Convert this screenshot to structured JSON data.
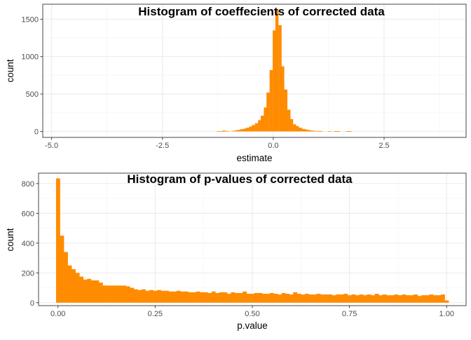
{
  "chart_data": [
    {
      "type": "bar",
      "title": "Histogram of coeffecients of corrected data",
      "xlabel": "estimate",
      "ylabel": "count",
      "xlim": [
        -5.2,
        4.35
      ],
      "ylim": [
        -80,
        1700
      ],
      "x_ticks": [
        -5.0,
        -2.5,
        0.0,
        2.5
      ],
      "x_tick_labels": [
        "-5.0",
        "-2.5",
        "0.0",
        "2.5"
      ],
      "y_ticks": [
        0,
        500,
        1000,
        1500
      ],
      "y_tick_labels": [
        "0",
        "500",
        "1000",
        "1500"
      ],
      "grid": true,
      "bin_width": 0.066,
      "bar_color": "#ff8c00",
      "bins": [
        {
          "x": -1.24,
          "count": 3
        },
        {
          "x": -1.17,
          "count": 5
        },
        {
          "x": -1.11,
          "count": 12
        },
        {
          "x": -1.04,
          "count": 6
        },
        {
          "x": -0.91,
          "count": 8
        },
        {
          "x": -0.84,
          "count": 14
        },
        {
          "x": -0.78,
          "count": 20
        },
        {
          "x": -0.71,
          "count": 30
        },
        {
          "x": -0.64,
          "count": 38
        },
        {
          "x": -0.58,
          "count": 50
        },
        {
          "x": -0.51,
          "count": 65
        },
        {
          "x": -0.45,
          "count": 85
        },
        {
          "x": -0.38,
          "count": 110
        },
        {
          "x": -0.31,
          "count": 150
        },
        {
          "x": -0.25,
          "count": 210
        },
        {
          "x": -0.18,
          "count": 320
        },
        {
          "x": -0.12,
          "count": 520
        },
        {
          "x": -0.05,
          "count": 820
        },
        {
          "x": 0.02,
          "count": 1350
        },
        {
          "x": 0.08,
          "count": 1630
        },
        {
          "x": 0.15,
          "count": 1420
        },
        {
          "x": 0.21,
          "count": 870
        },
        {
          "x": 0.28,
          "count": 560
        },
        {
          "x": 0.35,
          "count": 290
        },
        {
          "x": 0.41,
          "count": 165
        },
        {
          "x": 0.48,
          "count": 95
        },
        {
          "x": 0.54,
          "count": 70
        },
        {
          "x": 0.61,
          "count": 50
        },
        {
          "x": 0.68,
          "count": 34
        },
        {
          "x": 0.74,
          "count": 26
        },
        {
          "x": 0.81,
          "count": 18
        },
        {
          "x": 0.87,
          "count": 12
        },
        {
          "x": 0.94,
          "count": 8
        },
        {
          "x": 1.01,
          "count": 6
        },
        {
          "x": 1.07,
          "count": 4
        },
        {
          "x": 1.27,
          "count": 3
        },
        {
          "x": 1.4,
          "count": 4
        },
        {
          "x": 1.47,
          "count": 3
        },
        {
          "x": 1.67,
          "count": 3
        },
        {
          "x": 1.73,
          "count": 3
        }
      ]
    },
    {
      "type": "bar",
      "title": "Histogram of p-values of corrected data",
      "xlabel": "p.value",
      "ylabel": "count",
      "xlim": [
        -0.05,
        1.05
      ],
      "ylim": [
        -20,
        870
      ],
      "x_ticks": [
        0.0,
        0.25,
        0.5,
        0.75,
        1.0
      ],
      "x_tick_labels": [
        "0.00",
        "0.25",
        "0.50",
        "0.75",
        "1.00"
      ],
      "y_ticks": [
        0,
        200,
        400,
        600,
        800
      ],
      "y_tick_labels": [
        "0",
        "200",
        "400",
        "600",
        "800"
      ],
      "grid": true,
      "bin_width": 0.01,
      "bar_color": "#ff8c00",
      "counts": [
        835,
        450,
        340,
        250,
        225,
        200,
        175,
        155,
        160,
        150,
        150,
        135,
        115,
        115,
        115,
        115,
        115,
        115,
        110,
        100,
        90,
        85,
        90,
        80,
        85,
        80,
        85,
        80,
        80,
        75,
        75,
        80,
        75,
        75,
        70,
        70,
        75,
        70,
        70,
        65,
        75,
        65,
        70,
        70,
        60,
        70,
        65,
        65,
        75,
        60,
        60,
        65,
        65,
        60,
        60,
        65,
        60,
        55,
        65,
        60,
        55,
        70,
        60,
        55,
        60,
        55,
        55,
        60,
        55,
        55,
        55,
        50,
        55,
        55,
        60,
        50,
        55,
        50,
        55,
        50,
        55,
        50,
        60,
        50,
        55,
        50,
        50,
        55,
        50,
        55,
        50,
        50,
        55,
        45,
        50,
        50,
        55,
        50,
        50,
        55,
        15
      ]
    }
  ]
}
